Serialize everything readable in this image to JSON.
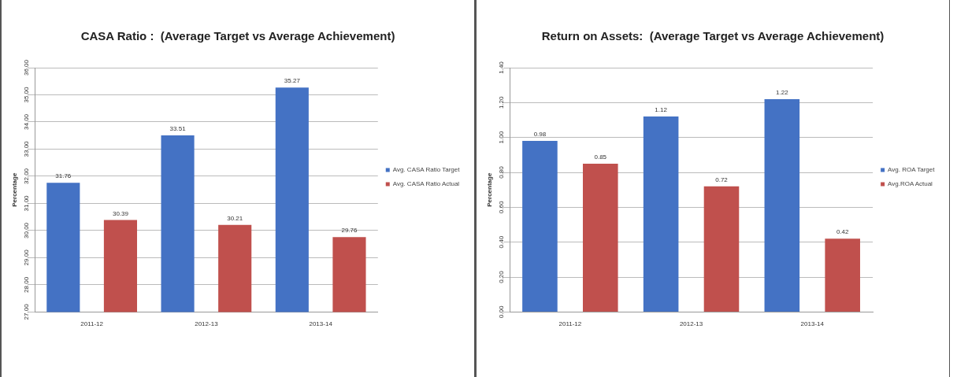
{
  "chart_data": [
    {
      "type": "bar",
      "title": "CASA Ratio :  (Average Target vs Average Achievement)",
      "ylabel": "Percentage",
      "categories": [
        "2011-12",
        "2012-13",
        "2013-14"
      ],
      "series": [
        {
          "name": "Avg. CASA Ratio Target",
          "color": "#4472c4",
          "values": [
            31.76,
            33.51,
            35.27
          ]
        },
        {
          "name": "Avg. CASA Ratio Actual",
          "color": "#c0504d",
          "values": [
            30.39,
            30.21,
            29.76
          ]
        }
      ],
      "ylim": [
        27,
        36
      ],
      "yticks": [
        {
          "value": 27,
          "label": "27.00"
        },
        {
          "value": 28,
          "label": "28.00"
        },
        {
          "value": 29,
          "label": "29.00"
        },
        {
          "value": 30,
          "label": "30.00"
        },
        {
          "value": 31,
          "label": "31.00"
        },
        {
          "value": 32,
          "label": "32.00"
        },
        {
          "value": 33,
          "label": "33.00"
        },
        {
          "value": 34,
          "label": "34.00"
        },
        {
          "value": 35,
          "label": "35.00"
        },
        {
          "value": 36,
          "label": "36.00"
        }
      ],
      "grid": "y",
      "legend": "right",
      "data_labels": true
    },
    {
      "type": "bar",
      "title": "Return on Assets:  (Average Target vs Average Achievement)",
      "ylabel": "Percentage",
      "categories": [
        "2011-12",
        "2012-13",
        "2013-14"
      ],
      "series": [
        {
          "name": "Avg. ROA Target",
          "color": "#4472c4",
          "values": [
            0.98,
            1.12,
            1.22
          ]
        },
        {
          "name": "Avg.ROA Actual",
          "color": "#c0504d",
          "values": [
            0.85,
            0.72,
            0.42
          ]
        }
      ],
      "ylim": [
        0,
        1.4
      ],
      "yticks": [
        {
          "value": 0,
          "label": "0.00"
        },
        {
          "value": 0.2,
          "label": "0.20"
        },
        {
          "value": 0.4,
          "label": "0.40"
        },
        {
          "value": 0.6,
          "label": "0.60"
        },
        {
          "value": 0.8,
          "label": "0.80"
        },
        {
          "value": 1,
          "label": "1.00"
        },
        {
          "value": 1.2,
          "label": "1.20"
        },
        {
          "value": 1.4,
          "label": "1.40"
        }
      ],
      "grid": "y",
      "legend": "right",
      "data_labels": true
    }
  ]
}
